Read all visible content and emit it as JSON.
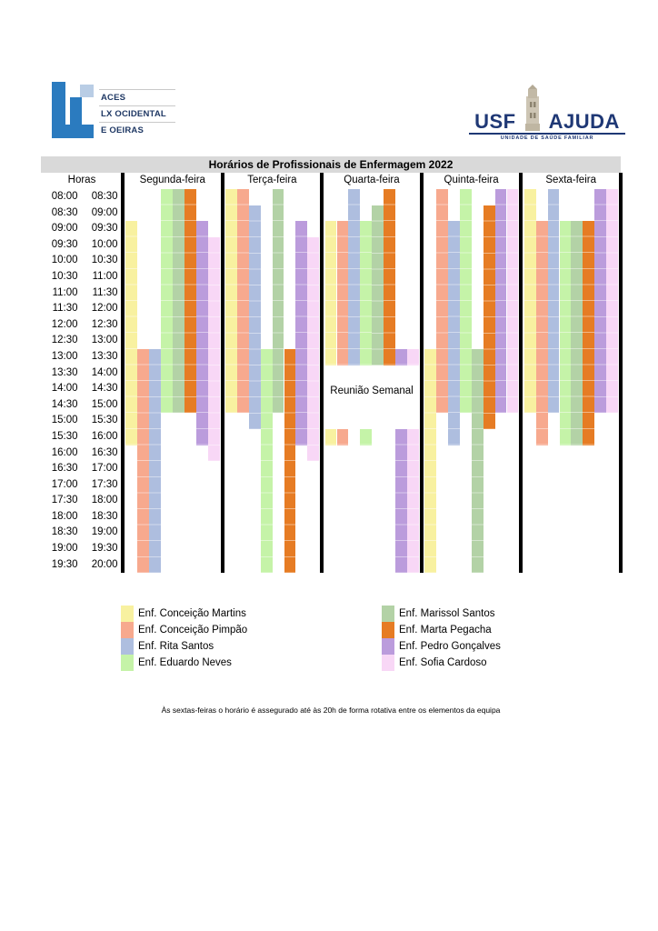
{
  "logos": {
    "aces": {
      "line1": "ACES",
      "line2": "LX OCIDENTAL",
      "line3": "E OEIRAS"
    },
    "usf": {
      "name_left": "USF",
      "name_right": "AJUDA",
      "subtitle": "UNIDADE DE SAÚDE FAMILIAR"
    }
  },
  "chart_data": {
    "type": "schedule-gantt",
    "title": "Horários de Profissionais de Enfermagem 2022",
    "hours_label": "Horas",
    "axis": {
      "start": "08:00",
      "end": "20:00",
      "slot_minutes": 30
    },
    "time_slots": [
      [
        "08:00",
        "08:30"
      ],
      [
        "08:30",
        "09:00"
      ],
      [
        "09:00",
        "09:30"
      ],
      [
        "09:30",
        "10:00"
      ],
      [
        "10:00",
        "10:30"
      ],
      [
        "10:30",
        "11:00"
      ],
      [
        "11:00",
        "11:30"
      ],
      [
        "11:30",
        "12:00"
      ],
      [
        "12:00",
        "12:30"
      ],
      [
        "12:30",
        "13:00"
      ],
      [
        "13:00",
        "13:30"
      ],
      [
        "13:30",
        "14:00"
      ],
      [
        "14:00",
        "14:30"
      ],
      [
        "14:30",
        "15:00"
      ],
      [
        "15:00",
        "15:30"
      ],
      [
        "15:30",
        "16:00"
      ],
      [
        "16:00",
        "16:30"
      ],
      [
        "16:30",
        "17:00"
      ],
      [
        "17:00",
        "17:30"
      ],
      [
        "17:30",
        "18:00"
      ],
      [
        "18:00",
        "18:30"
      ],
      [
        "18:30",
        "19:00"
      ],
      [
        "19:00",
        "19:30"
      ],
      [
        "19:30",
        "20:00"
      ]
    ],
    "nurses": [
      {
        "id": "martins",
        "name": "Enf. Conceição Martins",
        "color": "#f8f1a0"
      },
      {
        "id": "pimpao",
        "name": "Enf. Conceição Pimpão",
        "color": "#f7a98e"
      },
      {
        "id": "rita",
        "name": "Enf. Rita Santos",
        "color": "#aebedf"
      },
      {
        "id": "eduardo",
        "name": "Enf. Eduardo Neves",
        "color": "#c5f3a8"
      },
      {
        "id": "marissol",
        "name": "Enf. Marissol Santos",
        "color": "#b3d2a6"
      },
      {
        "id": "marta",
        "name": "Enf. Marta Pegacha",
        "color": "#e67c24"
      },
      {
        "id": "pedro",
        "name": "Enf. Pedro Gonçalves",
        "color": "#bb9cdc"
      },
      {
        "id": "sofia",
        "name": "Enf. Sofia Cardoso",
        "color": "#f8d7f6"
      }
    ],
    "days": [
      {
        "label": "Segunda-feira",
        "shifts": {
          "martins": [
            [
              "09:00",
              "16:00"
            ]
          ],
          "pimpao": [
            [
              "13:00",
              "20:00"
            ]
          ],
          "rita": [
            [
              "13:00",
              "20:00"
            ]
          ],
          "eduardo": [
            [
              "08:00",
              "15:00"
            ]
          ],
          "marissol": [
            [
              "08:00",
              "15:00"
            ]
          ],
          "marta": [
            [
              "08:00",
              "15:00"
            ]
          ],
          "pedro": [
            [
              "09:00",
              "16:00"
            ]
          ],
          "sofia": [
            [
              "09:30",
              "16:30"
            ]
          ]
        }
      },
      {
        "label": "Terça-feira",
        "shifts": {
          "martins": [
            [
              "08:00",
              "15:00"
            ]
          ],
          "pimpao": [
            [
              "08:00",
              "15:00"
            ]
          ],
          "rita": [
            [
              "08:30",
              "15:30"
            ]
          ],
          "eduardo": [
            [
              "13:00",
              "20:00"
            ]
          ],
          "marissol": [
            [
              "08:00",
              "15:00"
            ]
          ],
          "marta": [
            [
              "13:00",
              "20:00"
            ]
          ],
          "pedro": [
            [
              "09:00",
              "16:00"
            ]
          ],
          "sofia": [
            [
              "09:30",
              "16:30"
            ]
          ]
        }
      },
      {
        "label": "Quarta-feira",
        "annotation": "Reunião Semanal",
        "annotation_time": "13:30-15:30",
        "shifts": {
          "martins": [
            [
              "09:00",
              "13:30"
            ],
            [
              "15:30",
              "16:00"
            ]
          ],
          "pimpao": [
            [
              "09:00",
              "13:30"
            ],
            [
              "15:30",
              "16:00"
            ]
          ],
          "rita": [
            [
              "08:00",
              "13:30"
            ]
          ],
          "eduardo": [
            [
              "09:00",
              "13:30"
            ],
            [
              "15:30",
              "16:00"
            ]
          ],
          "marissol": [
            [
              "08:30",
              "13:30"
            ]
          ],
          "marta": [
            [
              "08:00",
              "13:30"
            ]
          ],
          "pedro": [
            [
              "13:00",
              "13:30"
            ],
            [
              "15:30",
              "20:00"
            ]
          ],
          "sofia": [
            [
              "13:00",
              "13:30"
            ],
            [
              "15:30",
              "20:00"
            ]
          ]
        }
      },
      {
        "label": "Quinta-feira",
        "shifts": {
          "martins": [
            [
              "13:00",
              "20:00"
            ]
          ],
          "pimpao": [
            [
              "08:00",
              "15:00"
            ]
          ],
          "rita": [
            [
              "09:00",
              "16:00"
            ]
          ],
          "eduardo": [
            [
              "08:00",
              "15:00"
            ]
          ],
          "marissol": [
            [
              "13:00",
              "20:00"
            ]
          ],
          "marta": [
            [
              "08:30",
              "15:30"
            ]
          ],
          "pedro": [
            [
              "08:00",
              "15:00"
            ]
          ],
          "sofia": [
            [
              "08:00",
              "15:00"
            ]
          ]
        }
      },
      {
        "label": "Sexta-feira",
        "shifts": {
          "martins": [
            [
              "08:00",
              "15:00"
            ]
          ],
          "pimpao": [
            [
              "09:00",
              "16:00"
            ]
          ],
          "rita": [
            [
              "08:00",
              "15:00"
            ]
          ],
          "eduardo": [
            [
              "09:00",
              "16:00"
            ]
          ],
          "marissol": [
            [
              "09:00",
              "16:00"
            ]
          ],
          "marta": [
            [
              "09:00",
              "16:00"
            ]
          ],
          "pedro": [
            [
              "08:00",
              "15:00"
            ]
          ],
          "sofia": [
            [
              "08:00",
              "15:00"
            ]
          ]
        }
      }
    ],
    "legend_position": "bottom",
    "grid": false
  },
  "footnote": "Às sextas-feiras o horário é assegurado até às 20h de forma rotativa entre os elementos da equipa"
}
